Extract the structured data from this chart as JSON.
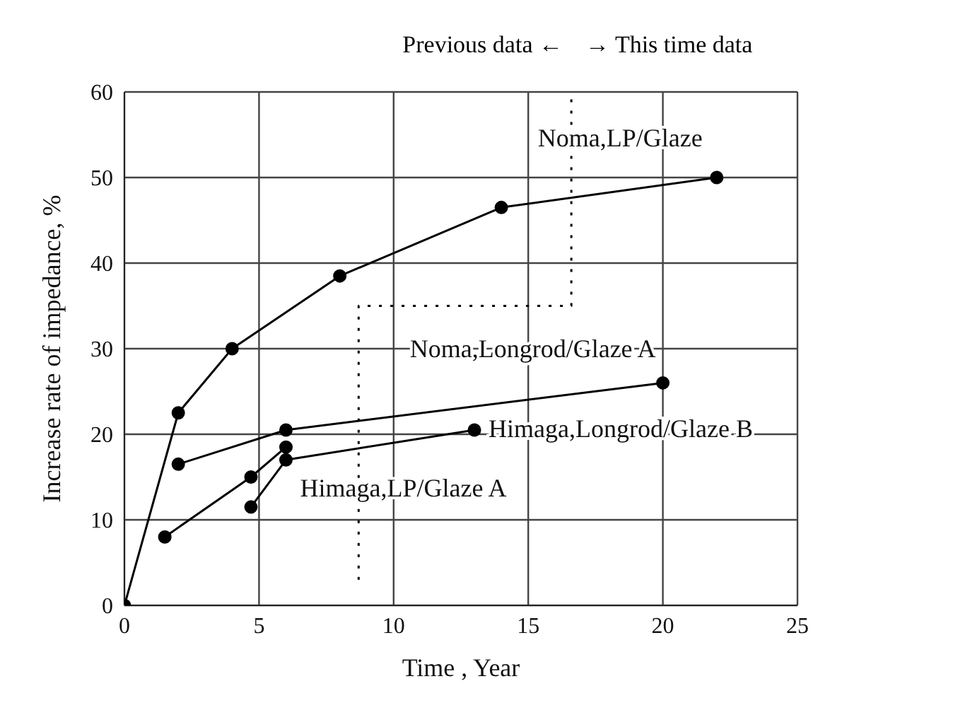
{
  "chart_data": {
    "type": "line",
    "xlabel": "Time , Year",
    "ylabel": "Increase rate of impedance, %",
    "annotations": [
      "Previous data ←",
      "→ This time data"
    ],
    "xlim": [
      0,
      25
    ],
    "xticks": [
      0,
      5,
      10,
      15,
      20,
      25
    ],
    "ylim": [
      0,
      60
    ],
    "yticks": [
      0,
      10,
      20,
      30,
      40,
      50,
      60
    ],
    "grid": true,
    "marker": "circle",
    "line_style": "solid",
    "series": [
      {
        "name": "Noma,LP/Glaze",
        "color": "#000000",
        "x": [
          0,
          2,
          4,
          8,
          14,
          22
        ],
        "values": [
          0,
          22.5,
          30,
          38.5,
          46.5,
          50
        ]
      },
      {
        "name": "Noma,Longrod/Glaze A",
        "color": "#000000",
        "x": [
          2,
          6,
          20
        ],
        "values": [
          16.5,
          20.5,
          26
        ]
      },
      {
        "name": "Himaga,Longrod/Glaze B",
        "color": "#000000",
        "x": [
          4.7,
          6,
          13
        ],
        "values": [
          11.5,
          17,
          20.5
        ]
      },
      {
        "name": "Himaga,LP/Glaze A",
        "color": "#000000",
        "x": [
          1.5,
          4.7,
          6
        ],
        "values": [
          8,
          15,
          18.5
        ]
      },
      {
        "color": "#000000",
        "marker": "none",
        "line_style": "dotted",
        "x": [
          8.7,
          8.7,
          16.6,
          16.6
        ],
        "values": [
          3,
          35,
          35,
          60
        ]
      }
    ]
  }
}
